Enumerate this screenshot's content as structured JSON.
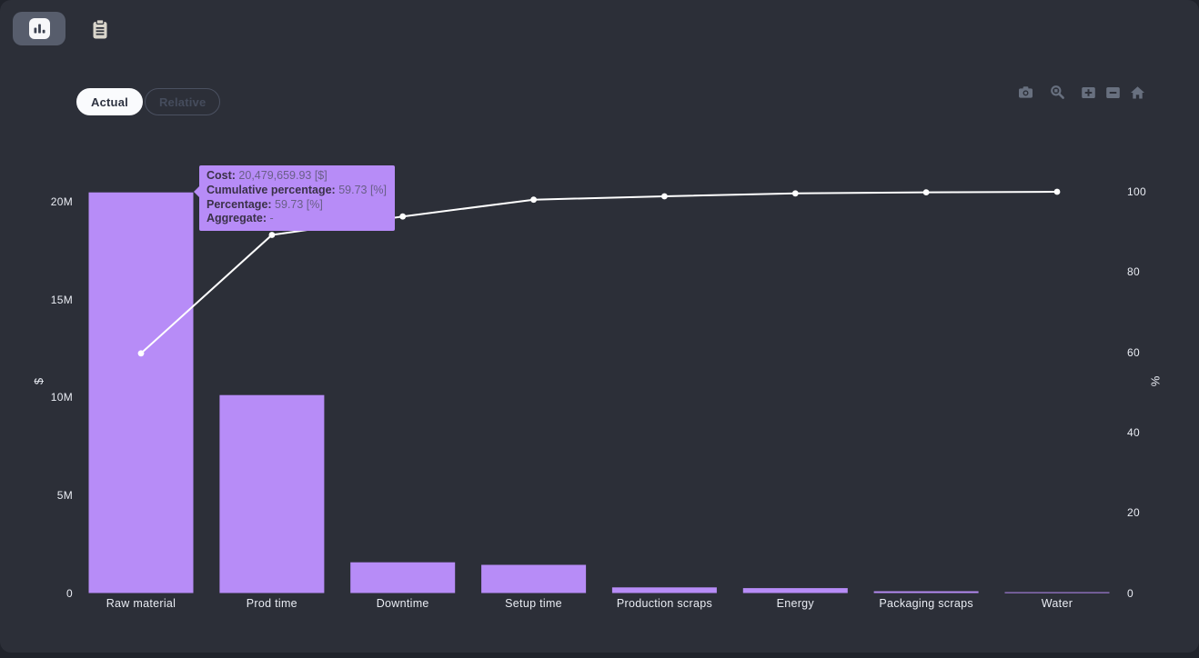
{
  "colors": {
    "app_background": "#2c2f38",
    "bar": "#b78cf7",
    "line": "#ffffff",
    "tooltip_background": "#b78cf7",
    "tab_button_background": "#575d6c",
    "active_pill_background": "#fafbfd",
    "modebar_icon": "#68707f"
  },
  "toolbar": {
    "chart_view_button_icon": "bar-chart-icon",
    "report_view_button_icon": "clipboard-icon"
  },
  "view_toggle": {
    "actual_label": "Actual",
    "relative_label": "Relative",
    "selected": "Actual"
  },
  "modebar": {
    "buttons": [
      "camera-icon",
      "zoom-icon",
      "zoom-in-icon",
      "zoom-out-icon",
      "home-icon"
    ]
  },
  "tooltip": {
    "rows": [
      {
        "label": "Cost",
        "value": "20,479,659.93 [$]"
      },
      {
        "label": "Cumulative percentage",
        "value": "59.73 [%]"
      },
      {
        "label": "Percentage",
        "value": "59.73 [%]"
      },
      {
        "label": "Aggregate",
        "value": "-"
      }
    ]
  },
  "chart_data": {
    "type": "bar",
    "subtype": "pareto (bars + cumulative percentage line)",
    "title": "",
    "categories": [
      "Raw material",
      "Prod time",
      "Downtime",
      "Setup time",
      "Production scraps",
      "Energy",
      "Packaging scraps",
      "Water"
    ],
    "series": [
      {
        "name": "Cost",
        "type": "bar",
        "unit": "$",
        "color": "#b78cf7",
        "values": [
          20479659.93,
          10120000,
          1570000,
          1440000,
          290000,
          250000,
          90000,
          40000
        ]
      },
      {
        "name": "Cumulative percentage",
        "type": "line",
        "unit": "%",
        "color": "#ffffff",
        "values": [
          59.73,
          89.25,
          93.83,
          98.03,
          98.87,
          99.6,
          99.86,
          100
        ]
      }
    ],
    "y_left": {
      "title": "$",
      "tick_labels": [
        "0",
        "5M",
        "10M",
        "15M",
        "20M"
      ],
      "tick_values": [
        0,
        5000000,
        10000000,
        15000000,
        20000000
      ],
      "range": [
        0,
        20000000
      ]
    },
    "y_right": {
      "title": "%",
      "tick_labels": [
        "0",
        "20",
        "40",
        "60",
        "80",
        "100"
      ],
      "tick_values": [
        0,
        20,
        40,
        60,
        80,
        100
      ],
      "range": [
        0,
        100
      ]
    },
    "grid": false,
    "legend": false
  }
}
